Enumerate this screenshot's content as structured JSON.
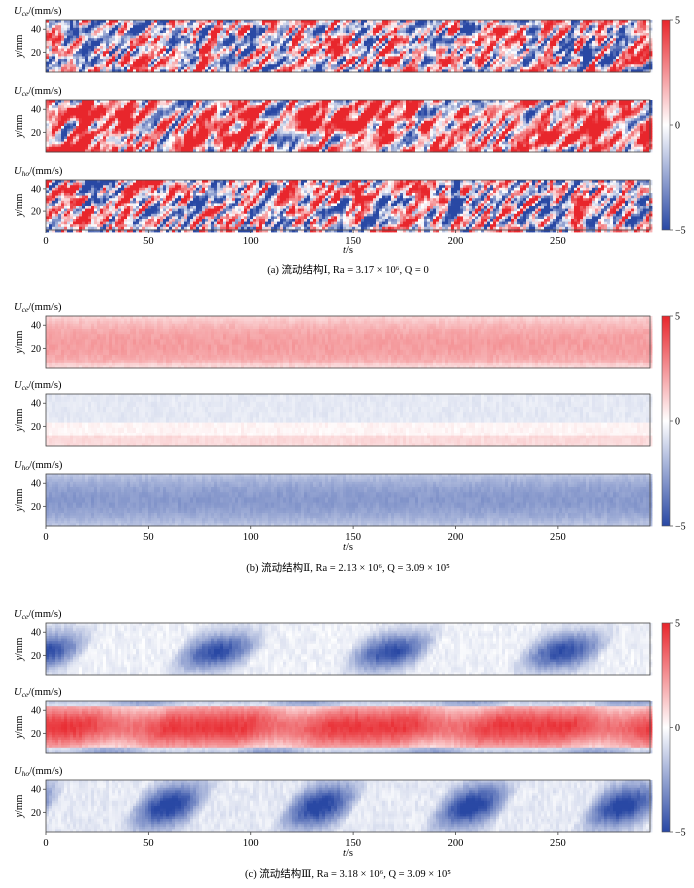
{
  "figure": {
    "panels": [
      {
        "caption": "(a) 流动结构Ⅰ, Ra = 3.17 × 10⁶, Q = 0",
        "rows": [
          {
            "label_sym": "U",
            "label_sub": "ce",
            "label_unit": "/(mm/s)",
            "ylabel": "y/mm",
            "pattern": "turbulent"
          },
          {
            "label_sym": "U",
            "label_sub": "ce",
            "label_unit": "/(mm/s)",
            "ylabel": "y/mm",
            "pattern": "turbulent-red"
          },
          {
            "label_sym": "U",
            "label_sub": "ho",
            "label_unit": "/(mm/s)",
            "ylabel": "y/mm",
            "pattern": "turbulent"
          }
        ],
        "xlabel": "t/s",
        "colorbar_ticks": [
          "5",
          "0",
          "−5"
        ]
      },
      {
        "caption": "(b) 流动结构Ⅱ, Ra = 2.13 × 10⁶, Q = 3.09 × 10⁵",
        "rows": [
          {
            "label_sym": "U",
            "label_sub": "ce",
            "label_unit": "/(mm/s)",
            "ylabel": "y/mm",
            "pattern": "uniform-red"
          },
          {
            "label_sym": "U",
            "label_sub": "ce",
            "label_unit": "/(mm/s)",
            "ylabel": "y/mm",
            "pattern": "uniform-pale"
          },
          {
            "label_sym": "U",
            "label_sub": "ho",
            "label_unit": "/(mm/s)",
            "ylabel": "y/mm",
            "pattern": "uniform-blue"
          }
        ],
        "xlabel": "t/s",
        "colorbar_ticks": [
          "5",
          "0",
          "−5"
        ]
      },
      {
        "caption": "(c) 流动结构Ⅲ, Ra = 3.18 × 10⁶, Q = 3.09 × 10⁵",
        "rows": [
          {
            "label_sym": "U",
            "label_sub": "ce",
            "label_unit": "/(mm/s)",
            "ylabel": "y/mm",
            "pattern": "blobs"
          },
          {
            "label_sym": "U",
            "label_sub": "ce",
            "label_unit": "/(mm/s)",
            "ylabel": "y/mm",
            "pattern": "red-wavy"
          },
          {
            "label_sym": "U",
            "label_sub": "ho",
            "label_unit": "/(mm/s)",
            "ylabel": "y/mm",
            "pattern": "blobs-dense"
          }
        ],
        "xlabel": "t/s",
        "colorbar_ticks": [
          "5",
          "0",
          "−5"
        ]
      }
    ]
  },
  "chart_data": {
    "type": "heatmap",
    "xlabel": "t/s",
    "ylabel": "y/mm",
    "xlim": [
      0,
      295
    ],
    "ylim": [
      3,
      48
    ],
    "x_ticks": [
      0,
      50,
      100,
      150,
      200,
      250
    ],
    "y_ticks": [
      20,
      40
    ],
    "colorbar": {
      "min": -5,
      "max": 5,
      "ticks": [
        5,
        0,
        -5
      ],
      "colors": {
        "neg": "#2948a4",
        "zero": "#ffffff",
        "pos": "#e8262c"
      }
    }
  }
}
